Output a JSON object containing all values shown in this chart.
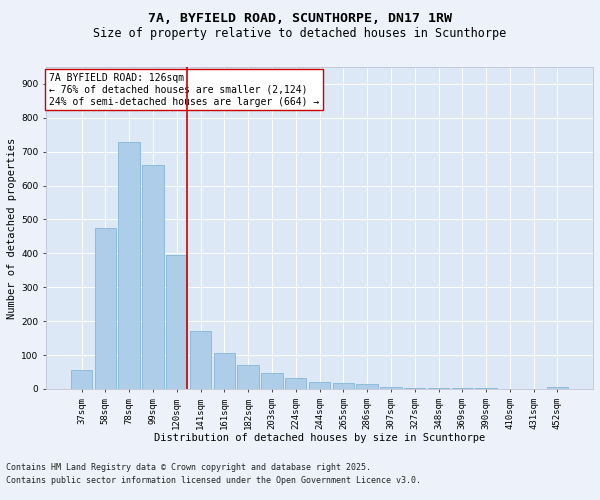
{
  "title_line1": "7A, BYFIELD ROAD, SCUNTHORPE, DN17 1RW",
  "title_line2": "Size of property relative to detached houses in Scunthorpe",
  "xlabel": "Distribution of detached houses by size in Scunthorpe",
  "ylabel": "Number of detached properties",
  "bar_labels": [
    "37sqm",
    "58sqm",
    "78sqm",
    "99sqm",
    "120sqm",
    "141sqm",
    "161sqm",
    "182sqm",
    "203sqm",
    "224sqm",
    "244sqm",
    "265sqm",
    "286sqm",
    "307sqm",
    "327sqm",
    "348sqm",
    "369sqm",
    "390sqm",
    "410sqm",
    "431sqm",
    "452sqm"
  ],
  "bar_values": [
    55,
    475,
    730,
    660,
    395,
    170,
    105,
    72,
    48,
    32,
    22,
    18,
    14,
    5,
    3,
    3,
    2,
    2,
    0,
    0,
    5
  ],
  "bar_color": "#aecde8",
  "bar_edge_color": "#7aafd4",
  "vline_x_index": 4,
  "vline_color": "#cc0000",
  "annotation_text": "7A BYFIELD ROAD: 126sqm\n← 76% of detached houses are smaller (2,124)\n24% of semi-detached houses are larger (664) →",
  "annotation_box_facecolor": "#ffffff",
  "annotation_box_edgecolor": "#cc0000",
  "ylim": [
    0,
    950
  ],
  "yticks": [
    0,
    100,
    200,
    300,
    400,
    500,
    600,
    700,
    800,
    900
  ],
  "bg_color": "#dce8f5",
  "grid_color": "#ffffff",
  "footnote_line1": "Contains HM Land Registry data © Crown copyright and database right 2025.",
  "footnote_line2": "Contains public sector information licensed under the Open Government Licence v3.0.",
  "title_fontsize": 9.5,
  "subtitle_fontsize": 8.5,
  "axis_label_fontsize": 7.5,
  "tick_fontsize": 6.5,
  "annotation_fontsize": 7,
  "footnote_fontsize": 6
}
